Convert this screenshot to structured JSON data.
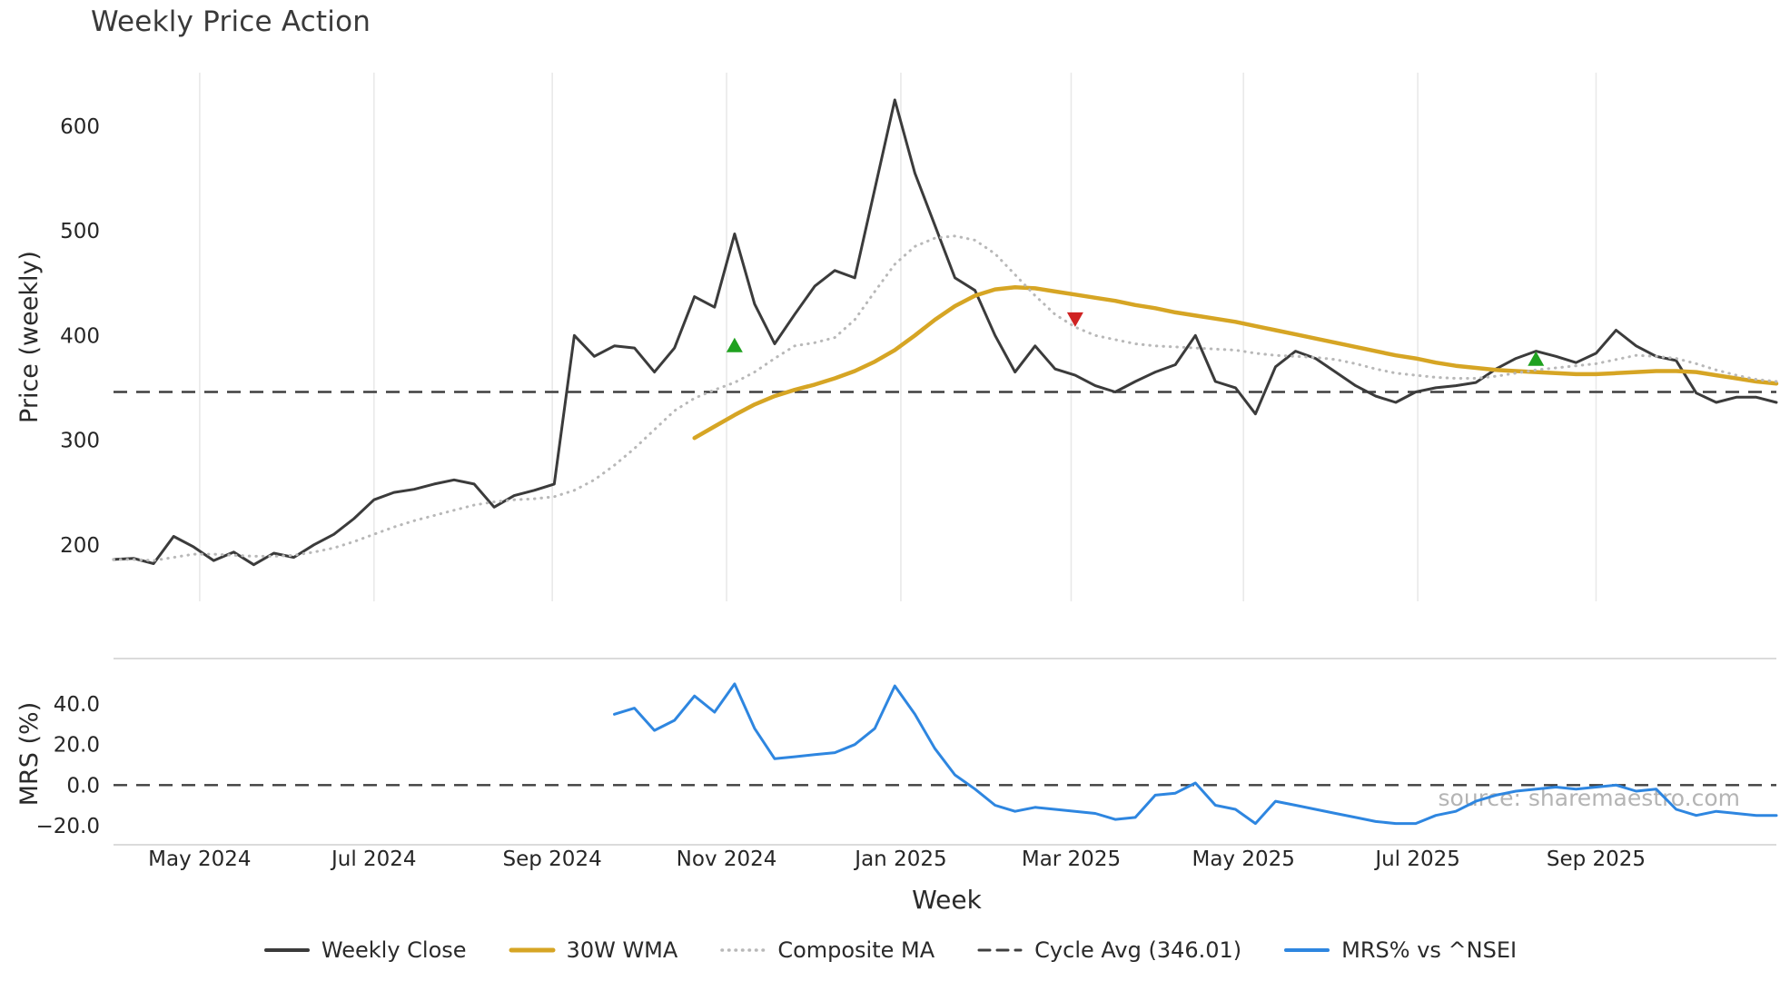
{
  "title": "Weekly Price Action",
  "watermark": "source: sharemaestro.com",
  "colors": {
    "close": "#3b3b3b",
    "wma": "#d6a524",
    "composite": "#b8b8b8",
    "cycle_avg": "#3f3f3f",
    "mrs": "#2e86e0",
    "buy": "#1fa11f",
    "sell": "#cf2222",
    "grid": "#e9e9e9",
    "spine": "#cfcfcf",
    "text": "#262626"
  },
  "legend": [
    {
      "label": "Weekly Close",
      "swatch": "solid",
      "color": "#3b3b3b",
      "width": 4
    },
    {
      "label": "30W WMA",
      "swatch": "solid",
      "color": "#d6a524",
      "width": 5
    },
    {
      "label": "Composite MA",
      "swatch": "dotted",
      "color": "#b8b8b8",
      "width": 3.5
    },
    {
      "label": "Cycle Avg (346.01)",
      "swatch": "dashed",
      "color": "#3f3f3f",
      "width": 3
    },
    {
      "label": "MRS% vs ^NSEI",
      "swatch": "solid",
      "color": "#2e86e0",
      "width": 4
    }
  ],
  "chart_data": [
    {
      "type": "line",
      "panel": "price",
      "title": "Weekly Price Action",
      "xlabel": "Week",
      "ylabel": "Price (weekly)",
      "x_unit": "week_index_from_2024-04",
      "xlim": [
        0,
        83
      ],
      "ylim": [
        146,
        651
      ],
      "yticks": [
        200,
        300,
        400,
        500,
        600
      ],
      "grid": "vertical-only",
      "xticks": {
        "positions": [
          4.3,
          13.0,
          21.9,
          30.6,
          39.3,
          47.8,
          56.4,
          65.1,
          74.0
        ],
        "labels": [
          "May 2024",
          "Jul 2024",
          "Sep 2024",
          "Nov 2024",
          "Jan 2025",
          "Mar 2025",
          "May 2025",
          "Jul 2025",
          "Sep 2025"
        ]
      },
      "series": [
        {
          "name": "Weekly Close",
          "style": "solid",
          "color": "#3b3b3b",
          "width": 3,
          "values": [
            186,
            187,
            182,
            208,
            198,
            185,
            193,
            181,
            192,
            188,
            200,
            210,
            225,
            243,
            250,
            253,
            258,
            262,
            258,
            236,
            247,
            252,
            258,
            400,
            380,
            390,
            388,
            365,
            388,
            437,
            427,
            497,
            430,
            392,
            420,
            447,
            462,
            455,
            540,
            625,
            555,
            505,
            455,
            443,
            400,
            365,
            390,
            368,
            362,
            352,
            346,
            356,
            365,
            372,
            400,
            356,
            350,
            325,
            370,
            385,
            378,
            365,
            352,
            342,
            336,
            346,
            350,
            352,
            355,
            368,
            378,
            385,
            380,
            374,
            383,
            405,
            390,
            380,
            376,
            345,
            336,
            341,
            341,
            336
          ]
        },
        {
          "name": "30W WMA",
          "style": "solid",
          "color": "#d6a524",
          "width": 4.5,
          "values": [
            null,
            null,
            null,
            null,
            null,
            null,
            null,
            null,
            null,
            null,
            null,
            null,
            null,
            null,
            null,
            null,
            null,
            null,
            null,
            null,
            null,
            null,
            null,
            null,
            null,
            null,
            null,
            null,
            null,
            302,
            313,
            324,
            334,
            342,
            348,
            353,
            359,
            366,
            375,
            386,
            400,
            415,
            428,
            438,
            444,
            446,
            445,
            442,
            439,
            436,
            433,
            429,
            426,
            422,
            419,
            416,
            413,
            409,
            405,
            401,
            397,
            393,
            389,
            385,
            381,
            378,
            374,
            371,
            369,
            367,
            366,
            365,
            364,
            363,
            363,
            364,
            365,
            366,
            366,
            365,
            362,
            359,
            356,
            354
          ]
        },
        {
          "name": "Composite MA",
          "style": "dotted",
          "color": "#b8b8b8",
          "width": 3,
          "values": [
            186,
            186,
            185,
            188,
            191,
            191,
            190,
            189,
            189,
            190,
            193,
            197,
            203,
            210,
            217,
            223,
            228,
            233,
            238,
            241,
            243,
            244,
            246,
            252,
            262,
            276,
            292,
            310,
            328,
            340,
            348,
            355,
            365,
            378,
            390,
            393,
            398,
            415,
            442,
            468,
            485,
            493,
            495,
            491,
            478,
            458,
            438,
            420,
            408,
            400,
            396,
            392,
            390,
            389,
            388,
            387,
            386,
            383,
            381,
            380,
            379,
            377,
            373,
            368,
            364,
            362,
            360,
            359,
            359,
            361,
            364,
            367,
            369,
            371,
            373,
            377,
            381,
            380,
            378,
            373,
            367,
            362,
            358,
            356
          ]
        }
      ],
      "hlines": [
        {
          "label": "Cycle Avg (346.01)",
          "value": 346.01,
          "style": "dashed",
          "color": "#3f3f3f"
        }
      ],
      "signals": {
        "buy": [
          {
            "week": 31,
            "price": 390
          },
          {
            "week": 71,
            "price": 377
          }
        ],
        "sell": [
          {
            "week": 48,
            "price": 416
          }
        ]
      }
    },
    {
      "type": "line",
      "panel": "mrs",
      "ylabel": "MRS (%)",
      "xlim": [
        0,
        83
      ],
      "ylim": [
        -29.5,
        62.5
      ],
      "yticks": [
        40,
        20,
        0,
        -20
      ],
      "ytick_labels": [
        "40.0",
        "20.0",
        "0.0",
        "−20.0"
      ],
      "grid": "none",
      "series": [
        {
          "name": "MRS% vs ^NSEI",
          "style": "solid",
          "color": "#2e86e0",
          "width": 3,
          "values": [
            null,
            null,
            null,
            null,
            null,
            null,
            null,
            null,
            null,
            null,
            null,
            null,
            null,
            null,
            null,
            null,
            null,
            null,
            null,
            null,
            null,
            null,
            null,
            null,
            null,
            35,
            38,
            27,
            32,
            44,
            36,
            50,
            28,
            13,
            14,
            15,
            16,
            20,
            28,
            49,
            35,
            18,
            5,
            -2,
            -10,
            -13,
            -11,
            -12,
            -13,
            -14,
            -17,
            -16,
            -5,
            -4,
            1,
            -10,
            -12,
            -19,
            -8,
            -10,
            -12,
            -14,
            -16,
            -18,
            -19,
            -19,
            -15,
            -13,
            -8,
            -5,
            -3,
            -2,
            -1,
            -2,
            -1,
            0,
            -3,
            -2,
            -12,
            -15,
            -13,
            -14,
            -15,
            -15
          ]
        }
      ],
      "hlines": [
        {
          "label": "zero",
          "value": 0,
          "style": "dashed",
          "color": "#3f3f3f"
        }
      ]
    }
  ]
}
